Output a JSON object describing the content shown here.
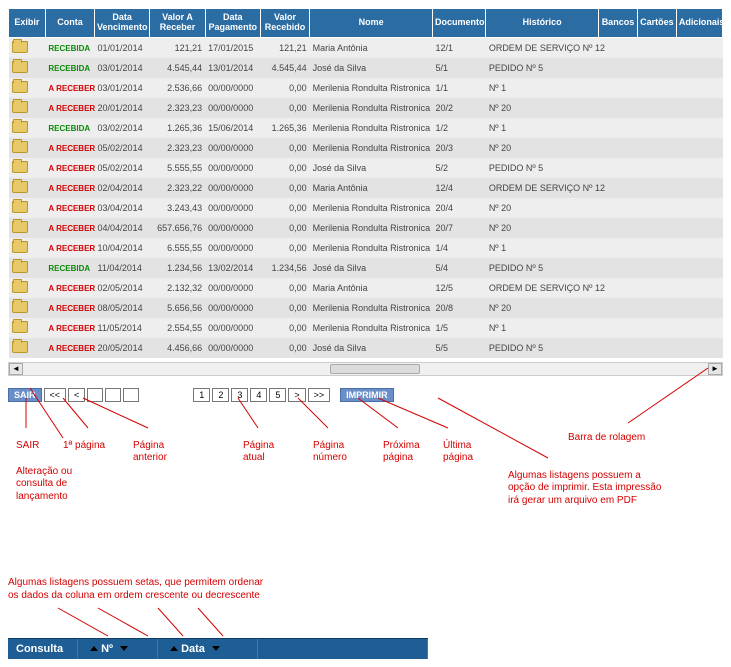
{
  "columns": [
    "Exibir",
    "Conta",
    "Data Vencimento",
    "Valor A Receber",
    "Data Pagamento",
    "Valor Recebido",
    "Nome",
    "Documento",
    "Histórico",
    "Bancos",
    "Cartões",
    "Adicionais"
  ],
  "rows": [
    {
      "status": "RECEBIDA",
      "venc": "01/01/2014",
      "valor": "121,21",
      "pag": "17/01/2015",
      "recebido": "121,21",
      "nome": "Maria Antônia",
      "doc": "12/1",
      "hist": "ORDEM DE SERVIÇO Nº 12"
    },
    {
      "status": "RECEBIDA",
      "venc": "03/01/2014",
      "valor": "4.545,44",
      "pag": "13/01/2014",
      "recebido": "4.545,44",
      "nome": "José da Silva",
      "doc": "5/1",
      "hist": "PEDIDO Nº 5"
    },
    {
      "status": "A RECEBER",
      "venc": "03/01/2014",
      "valor": "2.536,66",
      "pag": "00/00/0000",
      "recebido": "0,00",
      "nome": "Merilenia Rondulta Ristronica",
      "doc": "1/1",
      "hist": "Nº 1"
    },
    {
      "status": "A RECEBER",
      "venc": "20/01/2014",
      "valor": "2.323,23",
      "pag": "00/00/0000",
      "recebido": "0,00",
      "nome": "Merilenia Rondulta Ristronica",
      "doc": "20/2",
      "hist": "Nº 20"
    },
    {
      "status": "RECEBIDA",
      "venc": "03/02/2014",
      "valor": "1.265,36",
      "pag": "15/06/2014",
      "recebido": "1.265,36",
      "nome": "Merilenia Rondulta Ristronica",
      "doc": "1/2",
      "hist": "Nº 1"
    },
    {
      "status": "A RECEBER",
      "venc": "05/02/2014",
      "valor": "2.323,23",
      "pag": "00/00/0000",
      "recebido": "0,00",
      "nome": "Merilenia Rondulta Ristronica",
      "doc": "20/3",
      "hist": "Nº 20"
    },
    {
      "status": "A RECEBER",
      "venc": "05/02/2014",
      "valor": "5.555,55",
      "pag": "00/00/0000",
      "recebido": "0,00",
      "nome": "José da Silva",
      "doc": "5/2",
      "hist": "PEDIDO Nº 5"
    },
    {
      "status": "A RECEBER",
      "venc": "02/04/2014",
      "valor": "2.323,22",
      "pag": "00/00/0000",
      "recebido": "0,00",
      "nome": "Maria Antônia",
      "doc": "12/4",
      "hist": "ORDEM DE SERVIÇO Nº 12"
    },
    {
      "status": "A RECEBER",
      "venc": "03/04/2014",
      "valor": "3.243,43",
      "pag": "00/00/0000",
      "recebido": "0,00",
      "nome": "Merilenia Rondulta Ristronica",
      "doc": "20/4",
      "hist": "Nº 20"
    },
    {
      "status": "A RECEBER",
      "venc": "04/04/2014",
      "valor": "657.656,76",
      "pag": "00/00/0000",
      "recebido": "0,00",
      "nome": "Merilenia Rondulta Ristronica",
      "doc": "20/7",
      "hist": "Nº 20"
    },
    {
      "status": "A RECEBER",
      "venc": "10/04/2014",
      "valor": "6.555,55",
      "pag": "00/00/0000",
      "recebido": "0,00",
      "nome": "Merilenia Rondulta Ristronica",
      "doc": "1/4",
      "hist": "Nº 1"
    },
    {
      "status": "RECEBIDA",
      "venc": "11/04/2014",
      "valor": "1.234,56",
      "pag": "13/02/2014",
      "recebido": "1.234,56",
      "nome": "José da Silva",
      "doc": "5/4",
      "hist": "PEDIDO Nº 5"
    },
    {
      "status": "A RECEBER",
      "venc": "02/05/2014",
      "valor": "2.132,32",
      "pag": "00/00/0000",
      "recebido": "0,00",
      "nome": "Maria Antônia",
      "doc": "12/5",
      "hist": "ORDEM DE SERVIÇO Nº 12"
    },
    {
      "status": "A RECEBER",
      "venc": "08/05/2014",
      "valor": "5.656,56",
      "pag": "00/00/0000",
      "recebido": "0,00",
      "nome": "Merilenia Rondulta Ristronica",
      "doc": "20/8",
      "hist": "Nº 20"
    },
    {
      "status": "A RECEBER",
      "venc": "11/05/2014",
      "valor": "2.554,55",
      "pag": "00/00/0000",
      "recebido": "0,00",
      "nome": "Merilenia Rondulta Ristronica",
      "doc": "1/5",
      "hist": "Nº 1"
    },
    {
      "status": "A RECEBER",
      "venc": "20/05/2014",
      "valor": "4.456,66",
      "pag": "00/00/0000",
      "recebido": "0,00",
      "nome": "José da Silva",
      "doc": "5/5",
      "hist": "PEDIDO Nº 5"
    }
  ],
  "pager": {
    "sair": "SAIR",
    "first": "<<",
    "prev": "<",
    "p1": "1",
    "p2": "2",
    "p3": "3",
    "p4": "4",
    "p5": "5",
    "next": ">",
    "last": ">>",
    "print": "IMPRIMIR",
    "blank": " "
  },
  "labels": {
    "sair": "SAIR",
    "primeira": "1ª página",
    "anterior": "Página\nanterior",
    "alteracao": "Alteração ou\nconsulta de\nlançamento",
    "atual": "Página\natual",
    "numero": "Página\nnúmero",
    "proxima": "Próxima\npágina",
    "ultima": "Última\npágina",
    "rolagem": "Barra de rolagem",
    "imprimir": "Algumas listagens possuem a\nopção de imprimir. Esta impressão\nirá gerar um arquivo em PDF",
    "sortnote": "Algumas listagens possuem setas, que permitem ordenar\nos dados da coluna em ordem crescente ou decrescente"
  },
  "miniheader": {
    "c1": "Consulta",
    "c2": "Nº",
    "c3": "Data"
  }
}
